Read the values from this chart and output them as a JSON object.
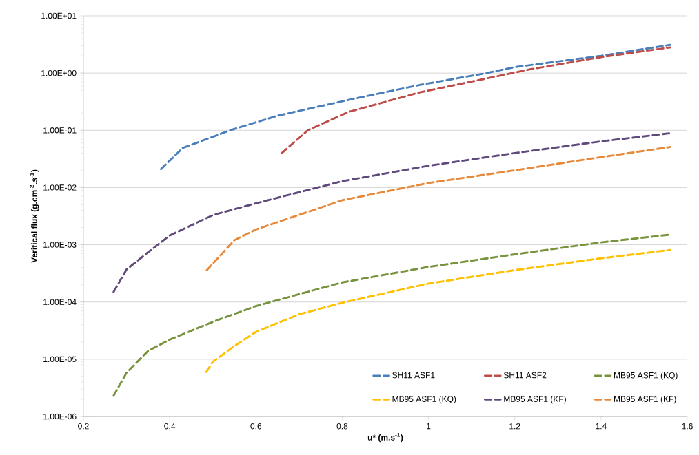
{
  "chart_data": {
    "type": "line",
    "xlabel": "u* (m.s$^{-1}$)",
    "ylabel": "Veritical  flux (g.cm$^{-2}$.s$^{-1}$)",
    "log": "y",
    "xlim": [
      0.2,
      1.6
    ],
    "ylim": [
      1e-06,
      10
    ],
    "xticks": [
      0.2,
      0.4,
      0.6,
      0.8,
      1,
      1.2,
      1.4,
      1.6
    ],
    "yticks": [
      {
        "value": 1e-06,
        "label": "1.00E-06"
      },
      {
        "value": 1e-05,
        "label": "1.00E-05"
      },
      {
        "value": 0.0001,
        "label": "1.00E-04"
      },
      {
        "value": 0.001,
        "label": "1.00E-03"
      },
      {
        "value": 0.01,
        "label": "1.00E-02"
      },
      {
        "value": 0.1,
        "label": "1.00E-01"
      },
      {
        "value": 1,
        "label": "1.00E+00"
      },
      {
        "value": 10,
        "label": "1.00E+01"
      }
    ],
    "grid": "y",
    "legend": "bottom right",
    "line_style": "dashed",
    "marker": "none",
    "series": [
      {
        "name": "SH11 ASF1",
        "color": "#4a7ebb",
        "x": [
          0.38,
          0.43,
          0.54,
          0.65,
          0.815,
          0.98,
          1.135,
          1.2,
          1.4,
          1.56
        ],
        "values": [
          0.021,
          0.049,
          0.1,
          0.18,
          0.34,
          0.62,
          1.0,
          1.27,
          2.0,
          3.1
        ]
      },
      {
        "name": "SH11 ASF2",
        "color": "#be4b48",
        "x": [
          0.66,
          0.72,
          0.815,
          0.98,
          1.235,
          1.4,
          1.56
        ],
        "values": [
          0.04,
          0.1,
          0.21,
          0.46,
          1.16,
          1.9,
          2.8
        ]
      },
      {
        "name": "MB95 ASF1 (KQ)",
        "color": "#77933c",
        "x": [
          0.27,
          0.3,
          0.35,
          0.4,
          0.5,
          0.6,
          0.8,
          1.0,
          1.2,
          1.4,
          1.56
        ],
        "values": [
          2.3e-06,
          5.8e-06,
          1.4e-05,
          2.2e-05,
          4.5e-05,
          8.5e-05,
          0.00022,
          0.00041,
          0.00068,
          0.0011,
          0.0015
        ]
      },
      {
        "name": "MB95 ASF1 (KQ)",
        "color": "#ffc000",
        "x": [
          0.485,
          0.5,
          0.55,
          0.6,
          0.7,
          0.8,
          1.0,
          1.2,
          1.4,
          1.56
        ],
        "values": [
          6e-06,
          9e-06,
          1.7e-05,
          3e-05,
          6.1e-05,
          9.7e-05,
          0.00021,
          0.00036,
          0.00058,
          0.00081
        ]
      },
      {
        "name": "MB95 ASF1 (KF)",
        "color": "#604a7b",
        "x": [
          0.27,
          0.3,
          0.35,
          0.4,
          0.5,
          0.6,
          0.8,
          1.0,
          1.2,
          1.4,
          1.56
        ],
        "values": [
          0.00015,
          0.00037,
          0.00074,
          0.00145,
          0.0033,
          0.0053,
          0.0129,
          0.024,
          0.04,
          0.064,
          0.089
        ]
      },
      {
        "name": "MB95 ASF1 (KF)",
        "color": "#e8893a",
        "x": [
          0.486,
          0.55,
          0.6,
          0.8,
          1.0,
          1.2,
          1.4,
          1.56
        ],
        "values": [
          0.00036,
          0.0012,
          0.00185,
          0.006,
          0.012,
          0.02,
          0.034,
          0.051
        ]
      }
    ]
  }
}
